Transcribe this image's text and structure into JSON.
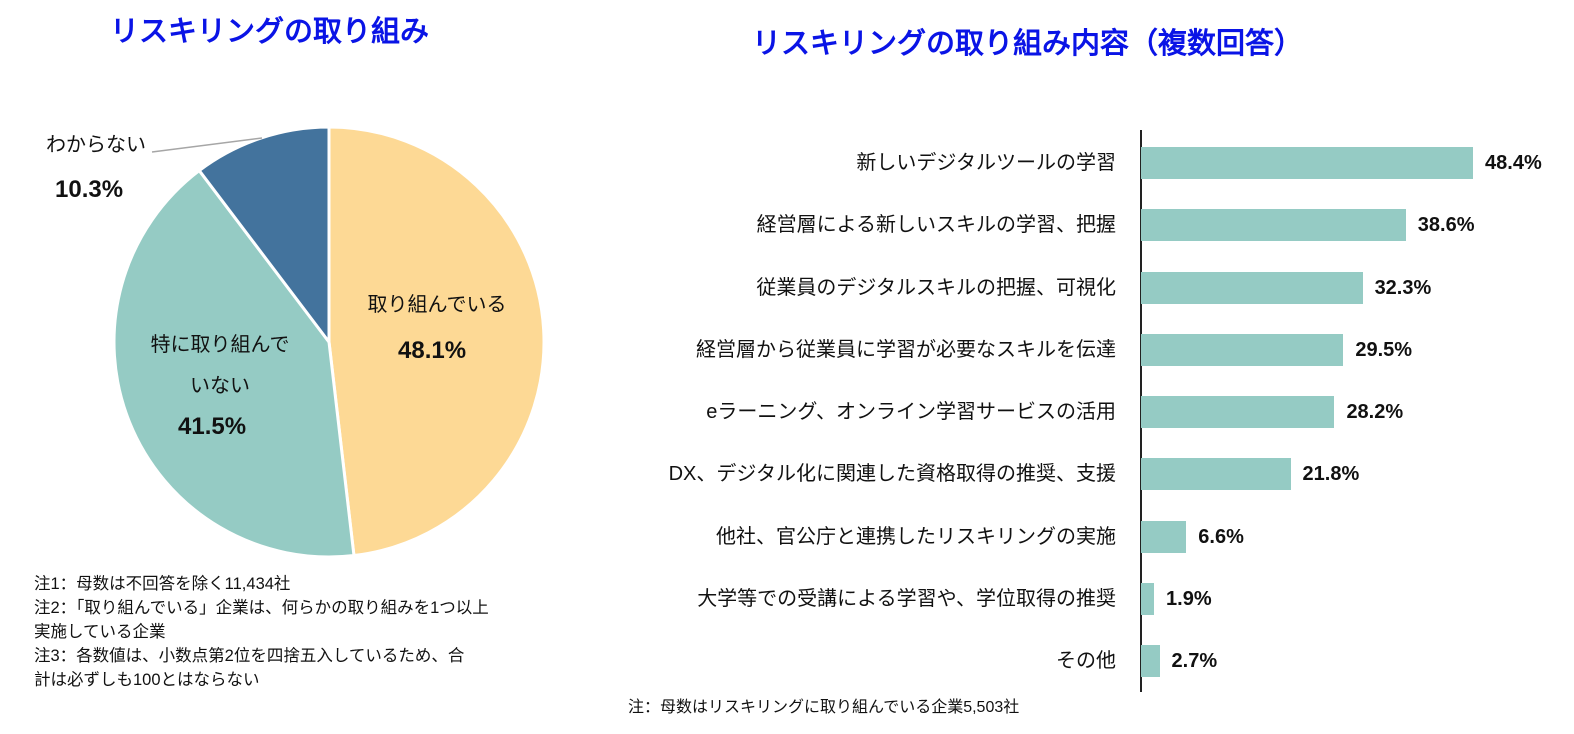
{
  "titles": {
    "left": "リスキリングの取り組み",
    "right": "リスキリングの取り組み内容（複数回答）"
  },
  "colors": {
    "title": "#0a14e6",
    "pie_doing": "#fdd995",
    "pie_not_doing": "#95cbc4",
    "pie_unknown": "#43739d",
    "bar": "#95cbc4"
  },
  "pie": {
    "slices": [
      {
        "label": "取り組んでいる",
        "value_text": "48.1%"
      },
      {
        "label_line1": "特に取り組んで",
        "label_line2": "いない",
        "value_text": "41.5%"
      },
      {
        "label": "わからない",
        "value_text": "10.3%"
      }
    ],
    "notes": [
      "注1：母数は不回答を除く11,434社",
      "注2：「取り組んでいる」企業は、何らかの取り組みを1つ以上",
      "実施している企業",
      "注3：各数値は、小数点第2位を四捨五入しているため、合",
      "計は必ずしも100とはならない"
    ]
  },
  "bars": {
    "items": [
      {
        "label": "新しいデジタルツールの学習",
        "value_text": "48.4%"
      },
      {
        "label": "経営層による新しいスキルの学習、把握",
        "value_text": "38.6%"
      },
      {
        "label": "従業員のデジタルスキルの把握、可視化",
        "value_text": "32.3%"
      },
      {
        "label": "経営層から従業員に学習が必要なスキルを伝達",
        "value_text": "29.5%"
      },
      {
        "label": "eラーニング、オンライン学習サービスの活用",
        "value_text": "28.2%"
      },
      {
        "label": "DX、デジタル化に関連した資格取得の推奨、支援",
        "value_text": "21.8%"
      },
      {
        "label": "他社、官公庁と連携したリスキリングの実施",
        "value_text": "6.6%"
      },
      {
        "label": "大学等での受講による学習や、学位取得の推奨",
        "value_text": "1.9%"
      },
      {
        "label": "その他",
        "value_text": "2.7%"
      }
    ],
    "note": "注：母数はリスキリングに取り組んでいる企業5,503社"
  },
  "chart_data": [
    {
      "type": "pie",
      "title": "リスキリングの取り組み",
      "categories": [
        "取り組んでいる",
        "特に取り組んでいない",
        "わからない"
      ],
      "values": [
        48.1,
        41.5,
        10.3
      ],
      "unit": "%",
      "start_angle": "12 o'clock, clockwise",
      "colors": [
        "#fdd995",
        "#95cbc4",
        "#43739d"
      ],
      "annotations": [
        "注1：母数は不回答を除く11,434社",
        "注2：「取り組んでいる」企業は、何らかの取り組みを1つ以上実施している企業",
        "注3：各数値は、小数点第2位を四捨五入しているため、合計は必ずしも100とはならない"
      ]
    },
    {
      "type": "bar",
      "orientation": "horizontal",
      "title": "リスキリングの取り組み内容（複数回答）",
      "categories": [
        "新しいデジタルツールの学習",
        "経営層による新しいスキルの学習、把握",
        "従業員のデジタルスキルの把握、可視化",
        "経営層から従業員に学習が必要なスキルを伝達",
        "eラーニング、オンライン学習サービスの活用",
        "DX、デジタル化に関連した資格取得の推奨、支援",
        "他社、官公庁と連携したリスキリングの実施",
        "大学等での受講による学習や、学位取得の推奨",
        "その他"
      ],
      "values": [
        48.4,
        38.6,
        32.3,
        29.5,
        28.2,
        21.8,
        6.6,
        1.9,
        2.7
      ],
      "unit": "%",
      "xlabel": "",
      "ylabel": "",
      "xlim": [
        0,
        50
      ],
      "grid": false,
      "data_labels": true,
      "color": "#95cbc4",
      "annotations": [
        "注：母数はリスキリングに取り組んでいる企業5,503社"
      ]
    }
  ]
}
